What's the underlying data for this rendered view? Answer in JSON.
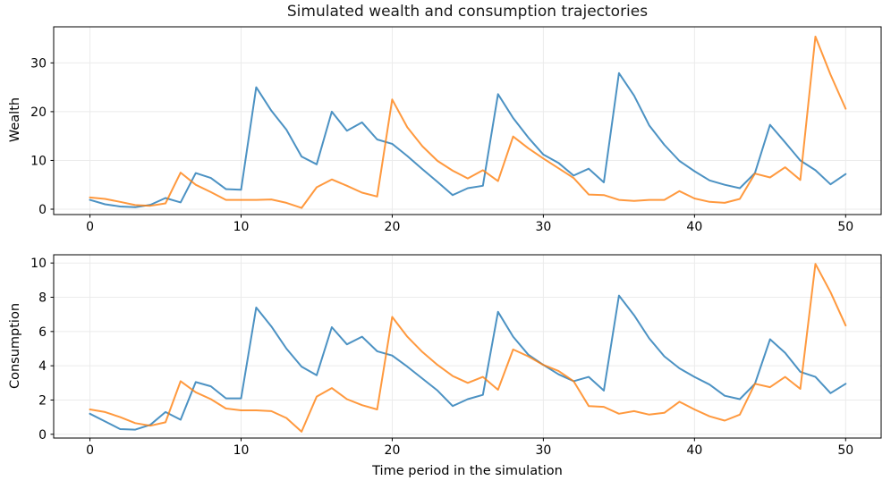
{
  "title": "Simulated wealth and consumption trajectories",
  "colors": {
    "series_blue": "#1f77b4",
    "series_orange": "#ff7f0e",
    "grid": "#ebebeb",
    "axes": "#000000",
    "text": "#1a1a1a"
  },
  "chart_data": [
    {
      "type": "line",
      "name": "wealth-trajectories",
      "ylabel": "Wealth",
      "xlabel": "",
      "grid": true,
      "legend": "none",
      "xlim": [
        -2.4,
        52.35
      ],
      "ylim": [
        -1.1,
        37.4
      ],
      "x_ticks": [
        0,
        10,
        20,
        30,
        40,
        50
      ],
      "y_ticks": [
        0,
        10,
        20,
        30
      ],
      "x": [
        0,
        1,
        2,
        3,
        4,
        5,
        6,
        7,
        8,
        9,
        10,
        11,
        12,
        13,
        14,
        15,
        16,
        17,
        18,
        19,
        20,
        21,
        22,
        23,
        24,
        25,
        26,
        27,
        28,
        29,
        30,
        31,
        32,
        33,
        34,
        35,
        36,
        37,
        38,
        39,
        40,
        41,
        42,
        43,
        44,
        45,
        46,
        47,
        48,
        49,
        50
      ],
      "series": [
        {
          "name": "wealth-agent-1",
          "color": "#1f77b4",
          "alpha": 0.8,
          "values": [
            1.9,
            1.0,
            0.55,
            0.4,
            0.9,
            2.3,
            1.4,
            7.4,
            6.4,
            4.1,
            4.0,
            25.0,
            20.2,
            16.3,
            10.8,
            9.2,
            20.0,
            16.1,
            17.8,
            14.3,
            13.4,
            10.9,
            8.2,
            5.6,
            2.9,
            4.3,
            4.8,
            23.6,
            18.7,
            14.7,
            11.2,
            9.5,
            6.9,
            8.3,
            5.5,
            27.9,
            23.3,
            17.2,
            13.2,
            9.9,
            7.8,
            5.9,
            5.0,
            4.3,
            7.4,
            17.3,
            13.7,
            10.0,
            8.0,
            5.1,
            7.2
          ]
        },
        {
          "name": "wealth-agent-2",
          "color": "#ff7f0e",
          "alpha": 0.8,
          "values": [
            2.4,
            2.1,
            1.5,
            0.85,
            0.7,
            1.2,
            7.5,
            5.0,
            3.5,
            1.9,
            1.9,
            1.9,
            2.0,
            1.3,
            0.25,
            4.5,
            6.1,
            4.8,
            3.4,
            2.6,
            22.5,
            16.8,
            12.9,
            9.9,
            7.9,
            6.3,
            8.0,
            5.75,
            14.9,
            12.5,
            10.4,
            8.4,
            6.4,
            3.0,
            2.9,
            1.9,
            1.7,
            1.9,
            1.9,
            3.7,
            2.2,
            1.5,
            1.3,
            2.1,
            7.3,
            6.5,
            8.6,
            6.0,
            35.4,
            27.6,
            20.6
          ]
        }
      ]
    },
    {
      "type": "line",
      "name": "consumption-trajectories",
      "ylabel": "Consumption",
      "xlabel": "Time period in the simulation",
      "grid": true,
      "legend": "none",
      "xlim": [
        -2.4,
        52.35
      ],
      "ylim": [
        -0.22,
        10.48
      ],
      "x_ticks": [
        0,
        10,
        20,
        30,
        40,
        50
      ],
      "y_ticks": [
        0,
        2,
        4,
        6,
        8,
        10
      ],
      "x": [
        0,
        1,
        2,
        3,
        4,
        5,
        6,
        7,
        8,
        9,
        10,
        11,
        12,
        13,
        14,
        15,
        16,
        17,
        18,
        19,
        20,
        21,
        22,
        23,
        24,
        25,
        26,
        27,
        28,
        29,
        30,
        31,
        32,
        33,
        34,
        35,
        36,
        37,
        38,
        39,
        40,
        41,
        42,
        43,
        44,
        45,
        46,
        47,
        48,
        49,
        50
      ],
      "series": [
        {
          "name": "consumption-agent-1",
          "color": "#1f77b4",
          "alpha": 0.8,
          "values": [
            1.2,
            0.75,
            0.3,
            0.27,
            0.55,
            1.3,
            0.85,
            3.05,
            2.8,
            2.1,
            2.1,
            7.4,
            6.3,
            5.0,
            3.95,
            3.45,
            6.25,
            5.25,
            5.7,
            4.85,
            4.6,
            3.95,
            3.25,
            2.55,
            1.65,
            2.05,
            2.3,
            7.15,
            5.7,
            4.65,
            4.05,
            3.5,
            3.1,
            3.35,
            2.55,
            8.1,
            6.95,
            5.6,
            4.55,
            3.85,
            3.35,
            2.9,
            2.25,
            2.05,
            2.95,
            5.55,
            4.75,
            3.65,
            3.35,
            2.4,
            2.95
          ]
        },
        {
          "name": "consumption-agent-2",
          "color": "#ff7f0e",
          "alpha": 0.8,
          "values": [
            1.45,
            1.3,
            1.0,
            0.65,
            0.5,
            0.7,
            3.1,
            2.45,
            2.05,
            1.5,
            1.4,
            1.4,
            1.35,
            0.95,
            0.15,
            2.2,
            2.7,
            2.05,
            1.7,
            1.45,
            6.85,
            5.7,
            4.8,
            4.05,
            3.4,
            3.0,
            3.35,
            2.6,
            4.95,
            4.55,
            4.05,
            3.7,
            3.1,
            1.65,
            1.6,
            1.2,
            1.35,
            1.15,
            1.25,
            1.9,
            1.45,
            1.05,
            0.8,
            1.15,
            2.95,
            2.75,
            3.35,
            2.65,
            9.95,
            8.3,
            6.35
          ]
        }
      ]
    }
  ]
}
